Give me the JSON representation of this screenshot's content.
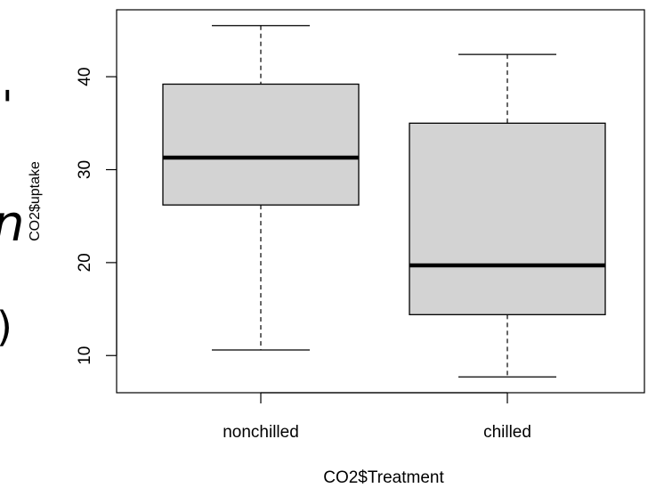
{
  "chart_data": {
    "type": "boxplot",
    "xlabel": "CO2$Treatment",
    "ylabel": "CO2$uptake",
    "categories": [
      "nonchilled",
      "chilled"
    ],
    "boxes": [
      {
        "name": "nonchilled",
        "whisker_low": 10.6,
        "q1": 26.2,
        "median": 31.3,
        "q3": 39.2,
        "whisker_high": 45.5
      },
      {
        "name": "chilled",
        "whisker_low": 7.7,
        "q1": 14.4,
        "median": 19.7,
        "q3": 35.0,
        "whisker_high": 42.4
      }
    ],
    "ylim": [
      6.0,
      47.2
    ],
    "yticks": [
      10,
      20,
      30,
      40
    ],
    "ytick_labels": [
      "10",
      "20",
      "30",
      "40"
    ],
    "grid": false,
    "box_fill": "#d3d3d3"
  },
  "page_fragments": {
    "glyph_top": "'",
    "glyph_italic": "n",
    "glyph_paren": ")"
  }
}
